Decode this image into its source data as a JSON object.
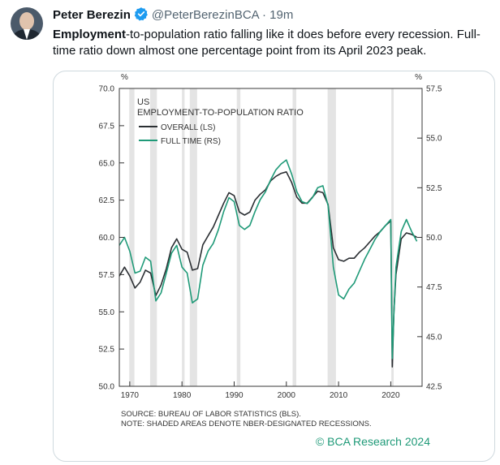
{
  "tweet": {
    "author_name": "Peter Berezin",
    "handle": "@PeterBerezinBCA",
    "separator": "·",
    "time": "19m",
    "text_bold": "Employment",
    "text_rest": "-to-population ratio falling like it does before every recession. Full-time ratio down almost one percentage point from its April 2023 peak."
  },
  "chart_data": {
    "type": "line",
    "title": "US",
    "subtitle": "EMPLOYMENT-TO-POPULATION RATIO",
    "left_unit": "%",
    "right_unit": "%",
    "left_ylim": [
      50,
      70
    ],
    "right_ylim": [
      42.5,
      57.5
    ],
    "left_ticks": [
      "70.0",
      "67.5",
      "65.0",
      "62.5",
      "60.0",
      "57.5",
      "55.0",
      "52.5",
      "50.0"
    ],
    "right_ticks": [
      "57.5",
      "55.0",
      "52.5",
      "50.0",
      "47.5",
      "45.0",
      "42.5"
    ],
    "x_ticks": [
      "1970",
      "1980",
      "1990",
      "2000",
      "2010",
      "2020"
    ],
    "xlim": [
      1968,
      2026
    ],
    "recessions": [
      [
        1969.9,
        1970.9
      ],
      [
        1973.9,
        1975.2
      ],
      [
        1980.0,
        1980.5
      ],
      [
        1981.5,
        1982.9
      ],
      [
        1990.5,
        1991.2
      ],
      [
        2001.2,
        2001.9
      ],
      [
        2007.9,
        2009.5
      ],
      [
        2020.1,
        2020.4
      ]
    ],
    "series": [
      {
        "name": "OVERALL (LS)",
        "axis": "left",
        "color": "#2b2f33",
        "points": [
          [
            1968,
            57.4
          ],
          [
            1969,
            58.0
          ],
          [
            1970,
            57.4
          ],
          [
            1971,
            56.6
          ],
          [
            1972,
            57.0
          ],
          [
            1973,
            57.8
          ],
          [
            1974,
            57.6
          ],
          [
            1975,
            56.1
          ],
          [
            1976,
            56.8
          ],
          [
            1977,
            57.9
          ],
          [
            1978,
            59.3
          ],
          [
            1979,
            59.9
          ],
          [
            1980,
            59.2
          ],
          [
            1981,
            59.0
          ],
          [
            1982,
            57.8
          ],
          [
            1983,
            57.9
          ],
          [
            1984,
            59.5
          ],
          [
            1985,
            60.1
          ],
          [
            1986,
            60.7
          ],
          [
            1987,
            61.5
          ],
          [
            1988,
            62.3
          ],
          [
            1989,
            63.0
          ],
          [
            1990,
            62.8
          ],
          [
            1991,
            61.7
          ],
          [
            1992,
            61.5
          ],
          [
            1993,
            61.7
          ],
          [
            1994,
            62.5
          ],
          [
            1995,
            62.9
          ],
          [
            1996,
            63.2
          ],
          [
            1997,
            63.8
          ],
          [
            1998,
            64.1
          ],
          [
            1999,
            64.3
          ],
          [
            2000,
            64.4
          ],
          [
            2001,
            63.7
          ],
          [
            2002,
            62.7
          ],
          [
            2003,
            62.3
          ],
          [
            2004,
            62.3
          ],
          [
            2005,
            62.7
          ],
          [
            2006,
            63.1
          ],
          [
            2007,
            63.0
          ],
          [
            2008,
            62.2
          ],
          [
            2009,
            59.3
          ],
          [
            2010,
            58.5
          ],
          [
            2011,
            58.4
          ],
          [
            2012,
            58.6
          ],
          [
            2013,
            58.6
          ],
          [
            2014,
            59.0
          ],
          [
            2015,
            59.3
          ],
          [
            2016,
            59.7
          ],
          [
            2017,
            60.1
          ],
          [
            2018,
            60.4
          ],
          [
            2019,
            60.8
          ],
          [
            2020.0,
            61.1
          ],
          [
            2020.3,
            51.3
          ],
          [
            2020.6,
            55.0
          ],
          [
            2021,
            57.5
          ],
          [
            2022,
            59.9
          ],
          [
            2023,
            60.3
          ],
          [
            2024,
            60.2
          ],
          [
            2025,
            60.0
          ]
        ]
      },
      {
        "name": "FULL TIME (RS)",
        "axis": "right",
        "color": "#1f9a78",
        "points": [
          [
            1968,
            49.6
          ],
          [
            1969,
            50.0
          ],
          [
            1970,
            49.3
          ],
          [
            1971,
            48.2
          ],
          [
            1972,
            48.3
          ],
          [
            1973,
            49.0
          ],
          [
            1974,
            48.8
          ],
          [
            1975,
            46.8
          ],
          [
            1976,
            47.2
          ],
          [
            1977,
            48.2
          ],
          [
            1978,
            49.2
          ],
          [
            1979,
            49.6
          ],
          [
            1980,
            48.5
          ],
          [
            1981,
            48.2
          ],
          [
            1982,
            46.7
          ],
          [
            1983,
            46.9
          ],
          [
            1984,
            48.6
          ],
          [
            1985,
            49.3
          ],
          [
            1986,
            49.7
          ],
          [
            1987,
            50.4
          ],
          [
            1988,
            51.3
          ],
          [
            1989,
            52.0
          ],
          [
            1990,
            51.8
          ],
          [
            1991,
            50.6
          ],
          [
            1992,
            50.4
          ],
          [
            1993,
            50.6
          ],
          [
            1994,
            51.3
          ],
          [
            1995,
            51.9
          ],
          [
            1996,
            52.3
          ],
          [
            1997,
            52.9
          ],
          [
            1998,
            53.4
          ],
          [
            1999,
            53.7
          ],
          [
            2000,
            53.9
          ],
          [
            2001,
            53.2
          ],
          [
            2002,
            52.3
          ],
          [
            2003,
            51.8
          ],
          [
            2004,
            51.7
          ],
          [
            2005,
            52.0
          ],
          [
            2006,
            52.5
          ],
          [
            2007,
            52.6
          ],
          [
            2008,
            51.6
          ],
          [
            2009,
            48.5
          ],
          [
            2010,
            47.1
          ],
          [
            2011,
            46.9
          ],
          [
            2012,
            47.4
          ],
          [
            2013,
            47.7
          ],
          [
            2014,
            48.3
          ],
          [
            2015,
            48.9
          ],
          [
            2016,
            49.4
          ],
          [
            2017,
            49.9
          ],
          [
            2018,
            50.3
          ],
          [
            2019,
            50.6
          ],
          [
            2020.0,
            50.9
          ],
          [
            2020.3,
            43.9
          ],
          [
            2020.6,
            46.2
          ],
          [
            2021,
            48.5
          ],
          [
            2022,
            50.3
          ],
          [
            2023,
            50.9
          ],
          [
            2024,
            50.3
          ],
          [
            2025,
            49.8
          ]
        ]
      }
    ],
    "source_line1": "SOURCE: BUREAU OF LABOR STATISTICS (BLS).",
    "source_line2": "NOTE: SHADED AREAS DENOTE NBER-DESIGNATED RECESSIONS.",
    "copyright": "© BCA Research 2024"
  },
  "colors": {
    "overall": "#2b2f33",
    "full_time": "#1f9a78",
    "recession_shade": "#e4e4e4",
    "verified_badge": "#1d9bf0"
  }
}
